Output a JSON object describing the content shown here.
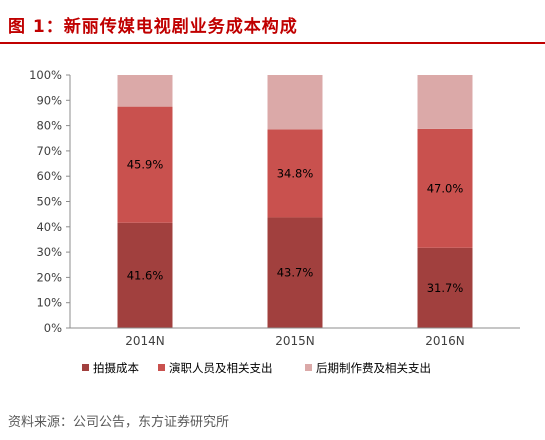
{
  "figure": {
    "title": "图 1：新丽传媒电视剧业务成本构成",
    "source": "资料来源：公司公告，东方证券研究所"
  },
  "colors": {
    "title": "#c00000",
    "rule": "#c00000",
    "series": [
      "#a1403e",
      "#c9514e",
      "#dba9a8"
    ]
  },
  "chart_data": {
    "type": "bar",
    "stacked": true,
    "categories": [
      "2014N",
      "2015N",
      "2016N"
    ],
    "series": [
      {
        "name": "拍摄成本",
        "values": [
          41.6,
          43.7,
          31.7
        ],
        "labels": [
          "41.6%",
          "43.7%",
          "31.7%"
        ]
      },
      {
        "name": "演职人员及相关支出",
        "values": [
          45.9,
          34.8,
          47.0
        ],
        "labels": [
          "45.9%",
          "34.8%",
          "47.0%"
        ]
      },
      {
        "name": "后期制作费及相关支出",
        "values": [
          12.5,
          21.5,
          21.3
        ],
        "labels": null
      }
    ],
    "yticks": [
      "0%",
      "10%",
      "20%",
      "30%",
      "40%",
      "50%",
      "60%",
      "70%",
      "80%",
      "90%",
      "100%"
    ],
    "ylim": [
      0,
      100
    ],
    "grid": false,
    "legend_position": "bottom"
  }
}
